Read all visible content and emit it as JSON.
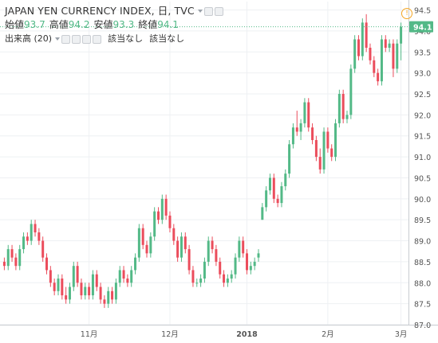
{
  "header": {
    "title": "JAPAN YEN CURRENCY INDEX, 日, TVC",
    "ohlc": [
      {
        "label": "始値",
        "value": "93.7"
      },
      {
        "label": "高値",
        "value": "94.2"
      },
      {
        "label": "安値",
        "value": "93.3"
      },
      {
        "label": "終値",
        "value": "94.1"
      }
    ],
    "volume_label": "出来高 (20)",
    "volume_values": [
      "該当なし",
      "該当なし"
    ]
  },
  "colors": {
    "up": "#53b987",
    "down": "#eb4d5c",
    "grid": "#eef0f3",
    "axis_text": "#555555",
    "last_price_bg": "#53b987"
  },
  "icons": [
    "settings-icon",
    "hide-icon",
    "plus-icon",
    "more-icon",
    "warning-icon"
  ],
  "chart_data": {
    "type": "candlestick",
    "title": "JAPAN YEN CURRENCY INDEX, 日, TVC",
    "y_ticks": [
      "94.5",
      "94.0",
      "93.5",
      "93.0",
      "92.5",
      "92.0",
      "91.5",
      "91.0",
      "90.5",
      "90.0",
      "89.5",
      "89.0",
      "88.5",
      "88.0",
      "87.5",
      "87.0"
    ],
    "ylim": [
      87.0,
      94.7
    ],
    "x_ticks": [
      "11月",
      "12月",
      "2018",
      "2月",
      "3月"
    ],
    "x_tick_index": [
      22,
      43,
      63,
      84,
      103
    ],
    "last_price": "94.1",
    "candles": [
      [
        88.5,
        88.6,
        88.3,
        88.4
      ],
      [
        88.4,
        88.9,
        88.3,
        88.8
      ],
      [
        88.8,
        88.9,
        88.5,
        88.6
      ],
      [
        88.6,
        88.7,
        88.3,
        88.4
      ],
      [
        88.4,
        88.9,
        88.3,
        88.8
      ],
      [
        88.8,
        89.2,
        88.7,
        89.1
      ],
      [
        89.1,
        89.2,
        88.9,
        89.0
      ],
      [
        89.0,
        89.5,
        88.9,
        89.4
      ],
      [
        89.4,
        89.5,
        89.1,
        89.2
      ],
      [
        89.2,
        89.3,
        88.9,
        89.0
      ],
      [
        89.0,
        89.1,
        88.5,
        88.6
      ],
      [
        88.6,
        88.7,
        88.2,
        88.3
      ],
      [
        88.3,
        88.4,
        87.9,
        88.0
      ],
      [
        88.0,
        88.1,
        87.7,
        87.8
      ],
      [
        87.8,
        88.2,
        87.7,
        88.1
      ],
      [
        88.1,
        88.2,
        87.6,
        87.7
      ],
      [
        87.7,
        87.9,
        87.5,
        87.6
      ],
      [
        87.6,
        88.0,
        87.5,
        87.9
      ],
      [
        87.9,
        88.5,
        87.8,
        88.4
      ],
      [
        88.4,
        88.5,
        87.9,
        88.0
      ],
      [
        88.0,
        88.1,
        87.6,
        87.7
      ],
      [
        87.7,
        88.0,
        87.6,
        87.9
      ],
      [
        87.9,
        88.0,
        87.6,
        87.7
      ],
      [
        87.7,
        88.3,
        87.6,
        88.2
      ],
      [
        88.2,
        88.3,
        87.8,
        87.9
      ],
      [
        87.9,
        88.0,
        87.5,
        87.6
      ],
      [
        87.6,
        87.7,
        87.4,
        87.5
      ],
      [
        87.5,
        87.9,
        87.4,
        87.8
      ],
      [
        87.8,
        87.9,
        87.5,
        87.6
      ],
      [
        87.6,
        88.1,
        87.5,
        88.0
      ],
      [
        88.0,
        88.4,
        87.9,
        88.3
      ],
      [
        88.3,
        88.4,
        88.0,
        88.1
      ],
      [
        88.1,
        88.2,
        87.9,
        88.0
      ],
      [
        88.0,
        88.4,
        87.9,
        88.3
      ],
      [
        88.3,
        88.7,
        88.2,
        88.6
      ],
      [
        88.6,
        89.4,
        88.5,
        89.3
      ],
      [
        89.3,
        89.4,
        88.8,
        88.9
      ],
      [
        88.9,
        89.0,
        88.6,
        88.7
      ],
      [
        88.7,
        89.2,
        88.6,
        89.1
      ],
      [
        89.1,
        89.8,
        89.0,
        89.7
      ],
      [
        89.7,
        89.8,
        89.4,
        89.5
      ],
      [
        89.5,
        90.1,
        89.4,
        90.0
      ],
      [
        90.0,
        90.1,
        89.5,
        89.6
      ],
      [
        89.6,
        89.7,
        89.2,
        89.3
      ],
      [
        89.3,
        89.4,
        88.9,
        89.0
      ],
      [
        89.0,
        89.1,
        88.5,
        88.6
      ],
      [
        88.6,
        89.2,
        88.5,
        89.1
      ],
      [
        89.1,
        89.2,
        88.7,
        88.8
      ],
      [
        88.8,
        88.9,
        88.2,
        88.3
      ],
      [
        88.3,
        88.4,
        87.9,
        88.0
      ],
      [
        88.0,
        88.1,
        87.9,
        88.0
      ],
      [
        88.0,
        88.2,
        87.9,
        88.1
      ],
      [
        88.1,
        88.6,
        88.0,
        88.5
      ],
      [
        88.5,
        89.1,
        88.4,
        89.0
      ],
      [
        89.0,
        89.1,
        88.7,
        88.8
      ],
      [
        88.8,
        88.9,
        88.4,
        88.5
      ],
      [
        88.5,
        88.6,
        88.1,
        88.2
      ],
      [
        88.2,
        88.3,
        87.9,
        88.0
      ],
      [
        88.0,
        88.2,
        87.9,
        88.1
      ],
      [
        88.1,
        88.3,
        88.0,
        88.2
      ],
      [
        88.2,
        88.7,
        88.1,
        88.6
      ],
      [
        88.6,
        89.1,
        88.5,
        89.0
      ],
      [
        89.0,
        89.1,
        88.6,
        88.7
      ],
      [
        88.7,
        88.8,
        88.2,
        88.3
      ],
      [
        88.3,
        88.5,
        88.2,
        88.4
      ],
      [
        88.4,
        88.6,
        88.3,
        88.5
      ],
      [
        88.6,
        88.8,
        88.5,
        88.7
      ],
      [
        89.5,
        89.9,
        89.5,
        89.8
      ],
      [
        89.8,
        90.3,
        89.7,
        90.2
      ],
      [
        90.2,
        90.6,
        90.1,
        90.5
      ],
      [
        90.5,
        90.6,
        89.9,
        90.0
      ],
      [
        90.0,
        90.1,
        89.8,
        89.9
      ],
      [
        89.9,
        90.4,
        89.8,
        90.3
      ],
      [
        90.3,
        90.7,
        90.2,
        90.6
      ],
      [
        90.6,
        91.4,
        90.5,
        91.3
      ],
      [
        91.3,
        91.8,
        91.2,
        91.7
      ],
      [
        91.7,
        92.1,
        91.5,
        91.6
      ],
      [
        91.6,
        91.9,
        91.4,
        91.8
      ],
      [
        91.8,
        92.4,
        91.7,
        92.3
      ],
      [
        92.3,
        92.4,
        91.6,
        91.7
      ],
      [
        91.7,
        91.8,
        91.3,
        91.4
      ],
      [
        91.4,
        91.5,
        90.9,
        91.0
      ],
      [
        91.0,
        91.2,
        90.6,
        90.7
      ],
      [
        90.7,
        91.7,
        90.6,
        91.6
      ],
      [
        91.6,
        91.7,
        91.1,
        91.2
      ],
      [
        91.2,
        91.3,
        90.9,
        91.0
      ],
      [
        91.0,
        91.9,
        90.9,
        91.8
      ],
      [
        91.8,
        92.6,
        91.7,
        92.5
      ],
      [
        92.5,
        92.6,
        91.8,
        91.9
      ],
      [
        91.9,
        92.1,
        91.8,
        92.0
      ],
      [
        92.0,
        93.2,
        91.9,
        93.1
      ],
      [
        93.1,
        93.9,
        93.0,
        93.8
      ],
      [
        93.8,
        93.9,
        93.3,
        93.4
      ],
      [
        93.4,
        94.3,
        93.3,
        94.2
      ],
      [
        94.2,
        94.4,
        93.5,
        93.6
      ],
      [
        93.6,
        93.7,
        93.2,
        93.3
      ],
      [
        93.3,
        93.4,
        92.9,
        93.0
      ],
      [
        93.0,
        93.1,
        92.7,
        92.8
      ],
      [
        92.8,
        93.9,
        92.7,
        93.8
      ],
      [
        93.8,
        93.9,
        93.5,
        93.6
      ],
      [
        93.6,
        93.8,
        93.5,
        93.7
      ],
      [
        93.7,
        93.8,
        92.9,
        93.1
      ],
      [
        93.1,
        93.8,
        93.0,
        93.7
      ],
      [
        93.7,
        94.2,
        93.3,
        94.1
      ]
    ]
  }
}
